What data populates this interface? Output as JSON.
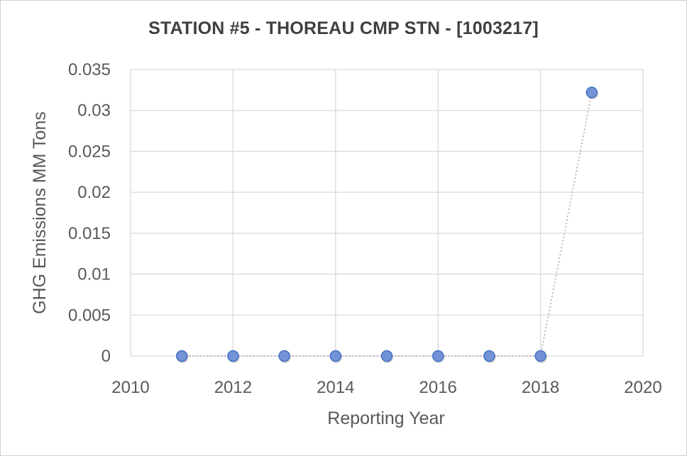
{
  "chart_data": {
    "type": "scatter",
    "title": "STATION #5 - THOREAU CMP STN - [1003217]",
    "xlabel": "Reporting Year",
    "ylabel": "GHG Emissions MM Tons",
    "xlim": [
      2010,
      2020
    ],
    "ylim": [
      0,
      0.035
    ],
    "x_ticks": [
      "2010",
      "2012",
      "2014",
      "2016",
      "2018",
      "2020"
    ],
    "y_ticks": [
      "0",
      "0.005",
      "0.01",
      "0.015",
      "0.02",
      "0.025",
      "0.03",
      "0.035"
    ],
    "grid": true,
    "legend": "none",
    "connector": "dotted",
    "series": [
      {
        "x": [
          2011,
          2012,
          2013,
          2014,
          2015,
          2016,
          2017,
          2018,
          2019
        ],
        "y": [
          0,
          0,
          0,
          0,
          0,
          0,
          0,
          0,
          0.0322
        ]
      }
    ],
    "colors": {
      "marker_fill": "#7293d6",
      "marker_stroke": "#4472c4",
      "grid": "#d9d9d9",
      "connector": "#a6a6a6"
    }
  }
}
